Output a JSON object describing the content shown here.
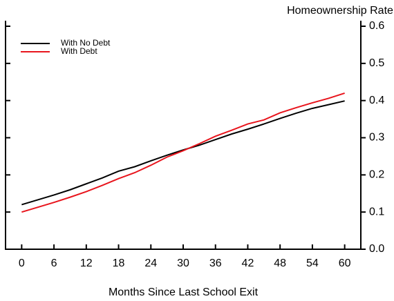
{
  "chart_data": {
    "type": "line",
    "y_label": "Homeownership Rate",
    "x_label": "Months Since Last School Exit",
    "x": [
      0,
      3,
      6,
      9,
      12,
      15,
      18,
      21,
      24,
      27,
      30,
      33,
      36,
      39,
      42,
      45,
      48,
      51,
      54,
      57,
      60
    ],
    "series": [
      {
        "name": "With No Debt",
        "color": "#000000",
        "values": [
          0.12,
          0.133,
          0.146,
          0.16,
          0.176,
          0.192,
          0.21,
          0.222,
          0.238,
          0.253,
          0.267,
          0.28,
          0.295,
          0.31,
          0.323,
          0.337,
          0.352,
          0.366,
          0.379,
          0.389,
          0.399
        ]
      },
      {
        "name": "With Debt",
        "color": "#e8141c",
        "values": [
          0.1,
          0.113,
          0.126,
          0.14,
          0.155,
          0.172,
          0.19,
          0.206,
          0.226,
          0.248,
          0.265,
          0.284,
          0.304,
          0.32,
          0.337,
          0.348,
          0.367,
          0.381,
          0.394,
          0.406,
          0.42
        ]
      }
    ],
    "xlim": [
      -3,
      63
    ],
    "xticks": [
      0,
      6,
      12,
      18,
      24,
      30,
      36,
      42,
      48,
      54,
      60
    ],
    "ylim": [
      0,
      0.6
    ],
    "yticks": [
      {
        "value": 0,
        "label": "0.0"
      },
      0.1,
      0.2,
      0.3,
      0.4,
      0.5,
      0.6
    ],
    "legend": "upper left"
  }
}
